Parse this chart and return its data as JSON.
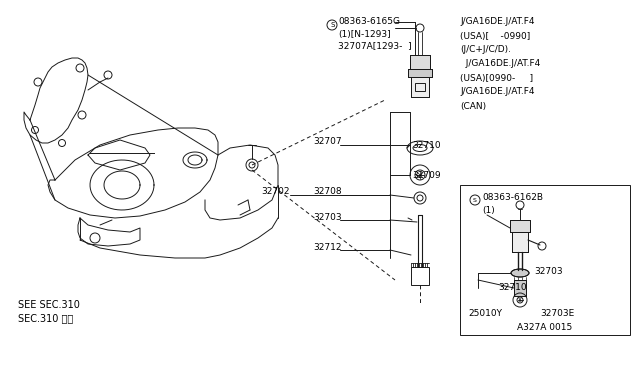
{
  "bg_color": "#ffffff",
  "fig_width": 6.4,
  "fig_height": 3.72,
  "dpi": 100,
  "lc": "#1a1a1a",
  "right_text_lines": [
    "J/GA16DE.J/AT.F4",
    "(USA)[    -0990]",
    "(J/C+J/C/D).",
    "  J/GA16DE.J/AT.F4",
    "(USA)[0990-     ]",
    "J/GA16DE.J/AT.F4",
    "(CAN)"
  ],
  "sec_text1": "SEE SEC.310",
  "sec_text2": "SEC.310 参照"
}
